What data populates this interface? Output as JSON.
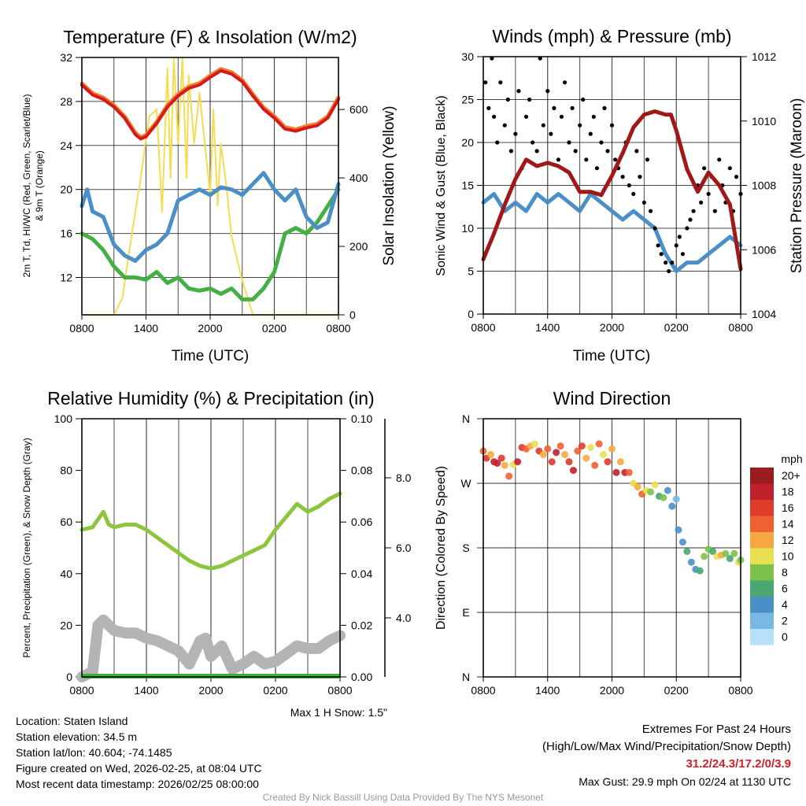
{
  "chart_data": [
    {
      "type": "line",
      "title": "Temperature (F) & Insolation (W/m2)",
      "xlabel": "Time (UTC)",
      "ylabel": "2m T, Td, HI/WC (Red, Green, Scarlet/Blue)",
      "ylabel2": "& 9m T (Orange)",
      "y2label": "Solar Insolation (Yellow)",
      "xticks": [
        "0800",
        "1400",
        "2000",
        "0200",
        "0800"
      ],
      "yticks": [
        "12",
        "16",
        "20",
        "24",
        "28",
        "32"
      ],
      "y2ticks": [
        "0",
        "200",
        "400",
        "600"
      ],
      "ylim": [
        8.6,
        32
      ],
      "y2lim": [
        0,
        752
      ],
      "series": [
        {
          "name": "2m T",
          "color": "#d7191c",
          "axis": "left",
          "x": [
            0,
            1,
            2,
            3,
            4,
            5,
            5.5,
            6,
            7,
            8,
            9,
            10,
            11,
            12,
            13,
            14,
            15,
            16,
            17,
            18,
            19,
            20,
            21,
            22,
            23,
            24
          ],
          "y": [
            29.5,
            28.6,
            28.2,
            27.5,
            26.5,
            25,
            24.6,
            24.8,
            26,
            27.5,
            28.5,
            29.2,
            29.5,
            30.2,
            30.8,
            30.5,
            29.8,
            28.5,
            27.3,
            26.5,
            25.5,
            25.3,
            25.6,
            25.8,
            26.5,
            28.2
          ]
        },
        {
          "name": "HI/WC",
          "color": "#4a8fc8",
          "axis": "left",
          "x": [
            0,
            0.5,
            1,
            2,
            3,
            4,
            5,
            6,
            7,
            8,
            9,
            10,
            11,
            12,
            13,
            14,
            15,
            16,
            17,
            18,
            19,
            20,
            21,
            22,
            23,
            24
          ],
          "y": [
            18.5,
            20,
            18,
            17.5,
            15,
            14,
            13.5,
            14.5,
            15,
            16,
            19,
            19.5,
            20,
            19.5,
            20.2,
            20,
            19.5,
            20.5,
            21.5,
            20,
            19,
            20,
            17.5,
            16.5,
            17,
            20.5
          ]
        },
        {
          "name": "Td",
          "color": "#44b044",
          "axis": "left",
          "x": [
            0,
            1,
            2,
            3,
            4,
            5,
            6,
            7,
            8,
            9,
            10,
            11,
            12,
            13,
            14,
            15,
            16,
            17,
            18,
            19,
            20,
            21,
            22,
            23,
            24
          ],
          "y": [
            16,
            15.5,
            14.5,
            13,
            12,
            12,
            11.8,
            12.5,
            11.5,
            12,
            11,
            10.8,
            11,
            10.5,
            11,
            10,
            10,
            11,
            12.5,
            16,
            16.5,
            16,
            17,
            18.5,
            20
          ]
        },
        {
          "name": "Solar Insolation",
          "color": "#f5dc50",
          "axis": "right",
          "x": [
            0,
            3,
            3.8,
            4.5,
            5.5,
            6.3,
            7,
            7.5,
            8,
            8.3,
            8.6,
            9,
            9.4,
            9.8,
            10,
            10.5,
            11,
            11.5,
            12,
            12.3,
            12.7,
            13,
            13.5,
            14,
            15,
            16,
            24
          ],
          "y": [
            0,
            0,
            50,
            200,
            400,
            580,
            600,
            300,
            720,
            400,
            750,
            500,
            750,
            400,
            700,
            500,
            650,
            500,
            350,
            600,
            320,
            500,
            380,
            230,
            100,
            0,
            0
          ]
        }
      ]
    },
    {
      "type": "line",
      "title": "Winds (mph) & Pressure (mb)",
      "xlabel": "Time (UTC)",
      "ylabel": "Sonic Wind & Gust (Blue, Black)",
      "y2label": "Station Pressure (Maroon)",
      "xticks": [
        "0800",
        "1400",
        "2000",
        "0200",
        "0800"
      ],
      "yticks": [
        "0",
        "5",
        "10",
        "15",
        "20",
        "25",
        "30"
      ],
      "y2ticks": [
        "1004",
        "1006",
        "1008",
        "1010",
        "1012"
      ],
      "ylim": [
        0,
        30
      ],
      "y2lim": [
        1004,
        1012
      ],
      "wind": {
        "color": "#4a8fc8",
        "x": [
          0,
          1,
          2,
          3,
          4,
          5,
          6,
          7,
          8,
          9,
          10,
          11,
          12,
          13,
          14,
          15,
          16,
          17,
          18,
          19,
          20,
          21,
          22,
          23,
          24
        ],
        "y": [
          13,
          14,
          12,
          13,
          12,
          14,
          13,
          14,
          13,
          12,
          14,
          13,
          12,
          11,
          12,
          11,
          10,
          7,
          5,
          6,
          6,
          7,
          8,
          9,
          8
        ]
      },
      "pressure": {
        "color": "#a01818",
        "x": [
          0,
          1,
          2,
          3,
          4,
          5,
          6,
          7,
          8,
          9,
          10,
          11,
          12,
          13,
          14,
          15,
          16,
          17,
          17.5,
          18,
          19,
          20,
          21,
          22,
          23,
          24
        ],
        "y": [
          1005.7,
          1006.5,
          1007.4,
          1008.2,
          1008.8,
          1008.6,
          1008.7,
          1008.6,
          1008.4,
          1007.8,
          1007.8,
          1007.7,
          1008.3,
          1009,
          1009.8,
          1010.2,
          1010.3,
          1010.2,
          1010.2,
          1009.7,
          1008.5,
          1007.8,
          1008.4,
          1008,
          1007.4,
          1005.4
        ]
      },
      "gust": {
        "color": "#000000",
        "x": [
          0.2,
          0.5,
          0.8,
          1,
          1.3,
          1.6,
          2,
          2.3,
          2.6,
          3,
          3.3,
          3.6,
          4,
          4.3,
          4.6,
          5,
          5.3,
          5.6,
          6,
          6.3,
          6.6,
          7,
          7.3,
          7.6,
          8,
          8.3,
          8.6,
          9,
          9.3,
          9.6,
          10,
          10.3,
          10.6,
          11,
          11.3,
          11.6,
          12,
          12.3,
          12.6,
          13,
          13.3,
          13.6,
          14,
          14.3,
          14.6,
          15,
          15.3,
          15.6,
          16,
          16.3,
          16.6,
          17,
          17.3,
          17.6,
          18,
          18.3,
          18.6,
          19,
          19.3,
          19.6,
          20,
          20.3,
          20.6,
          21,
          21.3,
          21.6,
          22,
          22.3,
          22.6,
          23,
          23.3,
          23.6,
          24
        ],
        "y": [
          27,
          24,
          29.8,
          23,
          20,
          27,
          22,
          25,
          19,
          21,
          26,
          17,
          23,
          25,
          20,
          19,
          29.8,
          22,
          26,
          21,
          24,
          18,
          23,
          27,
          20,
          24,
          19,
          22,
          25,
          18,
          21,
          23,
          17,
          20,
          24,
          19,
          22,
          18,
          17,
          16,
          20,
          15,
          14,
          19,
          16,
          13,
          18,
          12,
          10,
          8,
          7,
          6,
          5,
          6,
          8,
          9,
          7,
          10,
          11,
          12,
          15,
          13,
          17,
          14,
          16,
          12,
          18,
          15,
          13,
          17,
          12,
          16,
          14
        ]
      }
    },
    {
      "type": "line",
      "title": "Relative Humidity (%) & Precipitation (in)",
      "ylabel": "Percent, Precipitation (Green), & Snow Depth (Gray)",
      "xticks": [
        "0800",
        "1400",
        "2000",
        "0200",
        "0800"
      ],
      "yticks": [
        "0",
        "20",
        "40",
        "60",
        "80",
        "100"
      ],
      "y2ticks": [
        "0.00",
        "0.02",
        "0.04",
        "0.06",
        "0.08",
        "0.10"
      ],
      "y3ticks": [
        "4.0",
        "6.0",
        "8.0"
      ],
      "ylim": [
        0,
        100
      ],
      "y2lim": [
        0,
        0.1
      ],
      "rh": {
        "color": "#8cc63f",
        "x": [
          0,
          1,
          2,
          2.5,
          3,
          4,
          5,
          6,
          7,
          8,
          9,
          10,
          11,
          12,
          13,
          14,
          15,
          16,
          17,
          18,
          19,
          20,
          21,
          22,
          23,
          24
        ],
        "y": [
          57,
          58,
          64,
          59,
          58,
          59,
          59,
          57,
          54,
          51,
          48,
          45,
          43,
          42,
          43,
          45,
          47,
          49,
          51,
          57,
          62,
          67,
          64,
          66,
          69,
          71
        ]
      },
      "snow_depth": {
        "color": "#b4b4b4",
        "x": [
          0,
          1,
          1.5,
          2,
          3,
          4,
          5,
          6,
          7,
          8,
          9,
          10,
          11,
          11.5,
          12,
          13,
          14,
          15,
          16,
          17,
          18,
          19,
          20,
          21,
          22,
          23,
          24
        ],
        "y": [
          0,
          2,
          20,
          22,
          18,
          17,
          17,
          15,
          14,
          12,
          10,
          5,
          14,
          15,
          8,
          12,
          3,
          5,
          8,
          5,
          6,
          9,
          12,
          11,
          11,
          14,
          16
        ]
      },
      "precip": {
        "color": "#3cb03c",
        "value": 0
      },
      "note": "Max 1 H Snow: 1.5\""
    },
    {
      "type": "scatter",
      "title": "Wind Direction",
      "ylabel": "Direction (Colored By Speed)",
      "xticks": [
        "0800",
        "1400",
        "2000",
        "0200",
        "0800"
      ],
      "yticks": [
        "N",
        "E",
        "S",
        "W",
        "N"
      ],
      "ylim": [
        0,
        360
      ],
      "legend": {
        "title": "mph",
        "labels": [
          "20+",
          "18",
          "16",
          "14",
          "12",
          "10",
          "8",
          "6",
          "4",
          "2",
          "0"
        ],
        "colors": [
          "#9b1b1e",
          "#c0202a",
          "#e03a2a",
          "#f06030",
          "#f8a840",
          "#e8e050",
          "#7cc24a",
          "#48a870",
          "#4a90c8",
          "#7ab8e4",
          "#b8e0f8"
        ]
      },
      "points": [
        [
          0,
          315,
          14
        ],
        [
          0.3,
          305,
          16
        ],
        [
          0.7,
          310,
          12
        ],
        [
          1,
          300,
          18
        ],
        [
          1.3,
          298,
          18
        ],
        [
          1.7,
          305,
          16
        ],
        [
          2,
          295,
          12
        ],
        [
          2.4,
          280,
          14
        ],
        [
          2.8,
          296,
          10
        ],
        [
          3.2,
          300,
          18
        ],
        [
          3.6,
          320,
          16
        ],
        [
          4,
          318,
          14
        ],
        [
          4.4,
          322,
          12
        ],
        [
          4.8,
          325,
          10
        ],
        [
          5.2,
          315,
          16
        ],
        [
          5.6,
          310,
          12
        ],
        [
          6,
          318,
          14
        ],
        [
          6.4,
          300,
          16
        ],
        [
          6.8,
          313,
          18
        ],
        [
          7.2,
          322,
          14
        ],
        [
          7.6,
          310,
          12
        ],
        [
          8,
          300,
          16
        ],
        [
          8.4,
          288,
          18
        ],
        [
          8.8,
          315,
          14
        ],
        [
          9.2,
          322,
          16
        ],
        [
          9.6,
          305,
          12
        ],
        [
          10,
          320,
          10
        ],
        [
          10.4,
          295,
          14
        ],
        [
          10.8,
          325,
          14
        ],
        [
          11.2,
          310,
          10
        ],
        [
          11.6,
          300,
          16
        ],
        [
          12,
          318,
          12
        ],
        [
          12.4,
          285,
          18
        ],
        [
          12.8,
          300,
          12
        ],
        [
          13.2,
          285,
          18
        ],
        [
          13.6,
          285,
          14
        ],
        [
          14,
          270,
          10
        ],
        [
          14.4,
          265,
          12
        ],
        [
          14.8,
          255,
          14
        ],
        [
          15.2,
          260,
          10
        ],
        [
          15.6,
          258,
          8
        ],
        [
          16,
          268,
          10
        ],
        [
          16.4,
          252,
          6
        ],
        [
          16.8,
          250,
          8
        ],
        [
          17.2,
          260,
          4
        ],
        [
          17.6,
          238,
          4
        ],
        [
          18,
          248,
          2
        ],
        [
          18.2,
          205,
          4
        ],
        [
          18.6,
          188,
          4
        ],
        [
          19,
          175,
          6
        ],
        [
          19.4,
          160,
          4
        ],
        [
          19.8,
          150,
          4
        ],
        [
          20.2,
          148,
          6
        ],
        [
          20.6,
          168,
          8
        ],
        [
          21,
          178,
          8
        ],
        [
          21.4,
          175,
          6
        ],
        [
          21.8,
          168,
          10
        ],
        [
          22.2,
          170,
          12
        ],
        [
          22.6,
          172,
          8
        ],
        [
          23,
          165,
          6
        ],
        [
          23.4,
          172,
          8
        ],
        [
          23.8,
          160,
          10
        ],
        [
          24,
          163,
          8
        ]
      ]
    }
  ],
  "footer_left": {
    "location": "Location: Staten Island",
    "elevation": "Station elevation: 34.5 m",
    "latlon": "Station lat/lon: 40.604; -74.1485",
    "created": "Figure created on Wed, 2026-02-25, at 08:04 UTC",
    "recent": "Most recent data timestamp: 2026/02/25 08:00:00"
  },
  "footer_right": {
    "title": "Extremes For Past 24 Hours",
    "subtitle": "(High/Low/Max Wind/Precipitation/Snow Depth)",
    "values": "31.2/24.3/17.2/0/3.9",
    "values_color": "#d0202a",
    "gust": "Max Gust: 29.9 mph On 02/24 at 1130 UTC"
  },
  "credit": "Created By Nick Bassill Using Data Provided By The NYS Mesonet"
}
